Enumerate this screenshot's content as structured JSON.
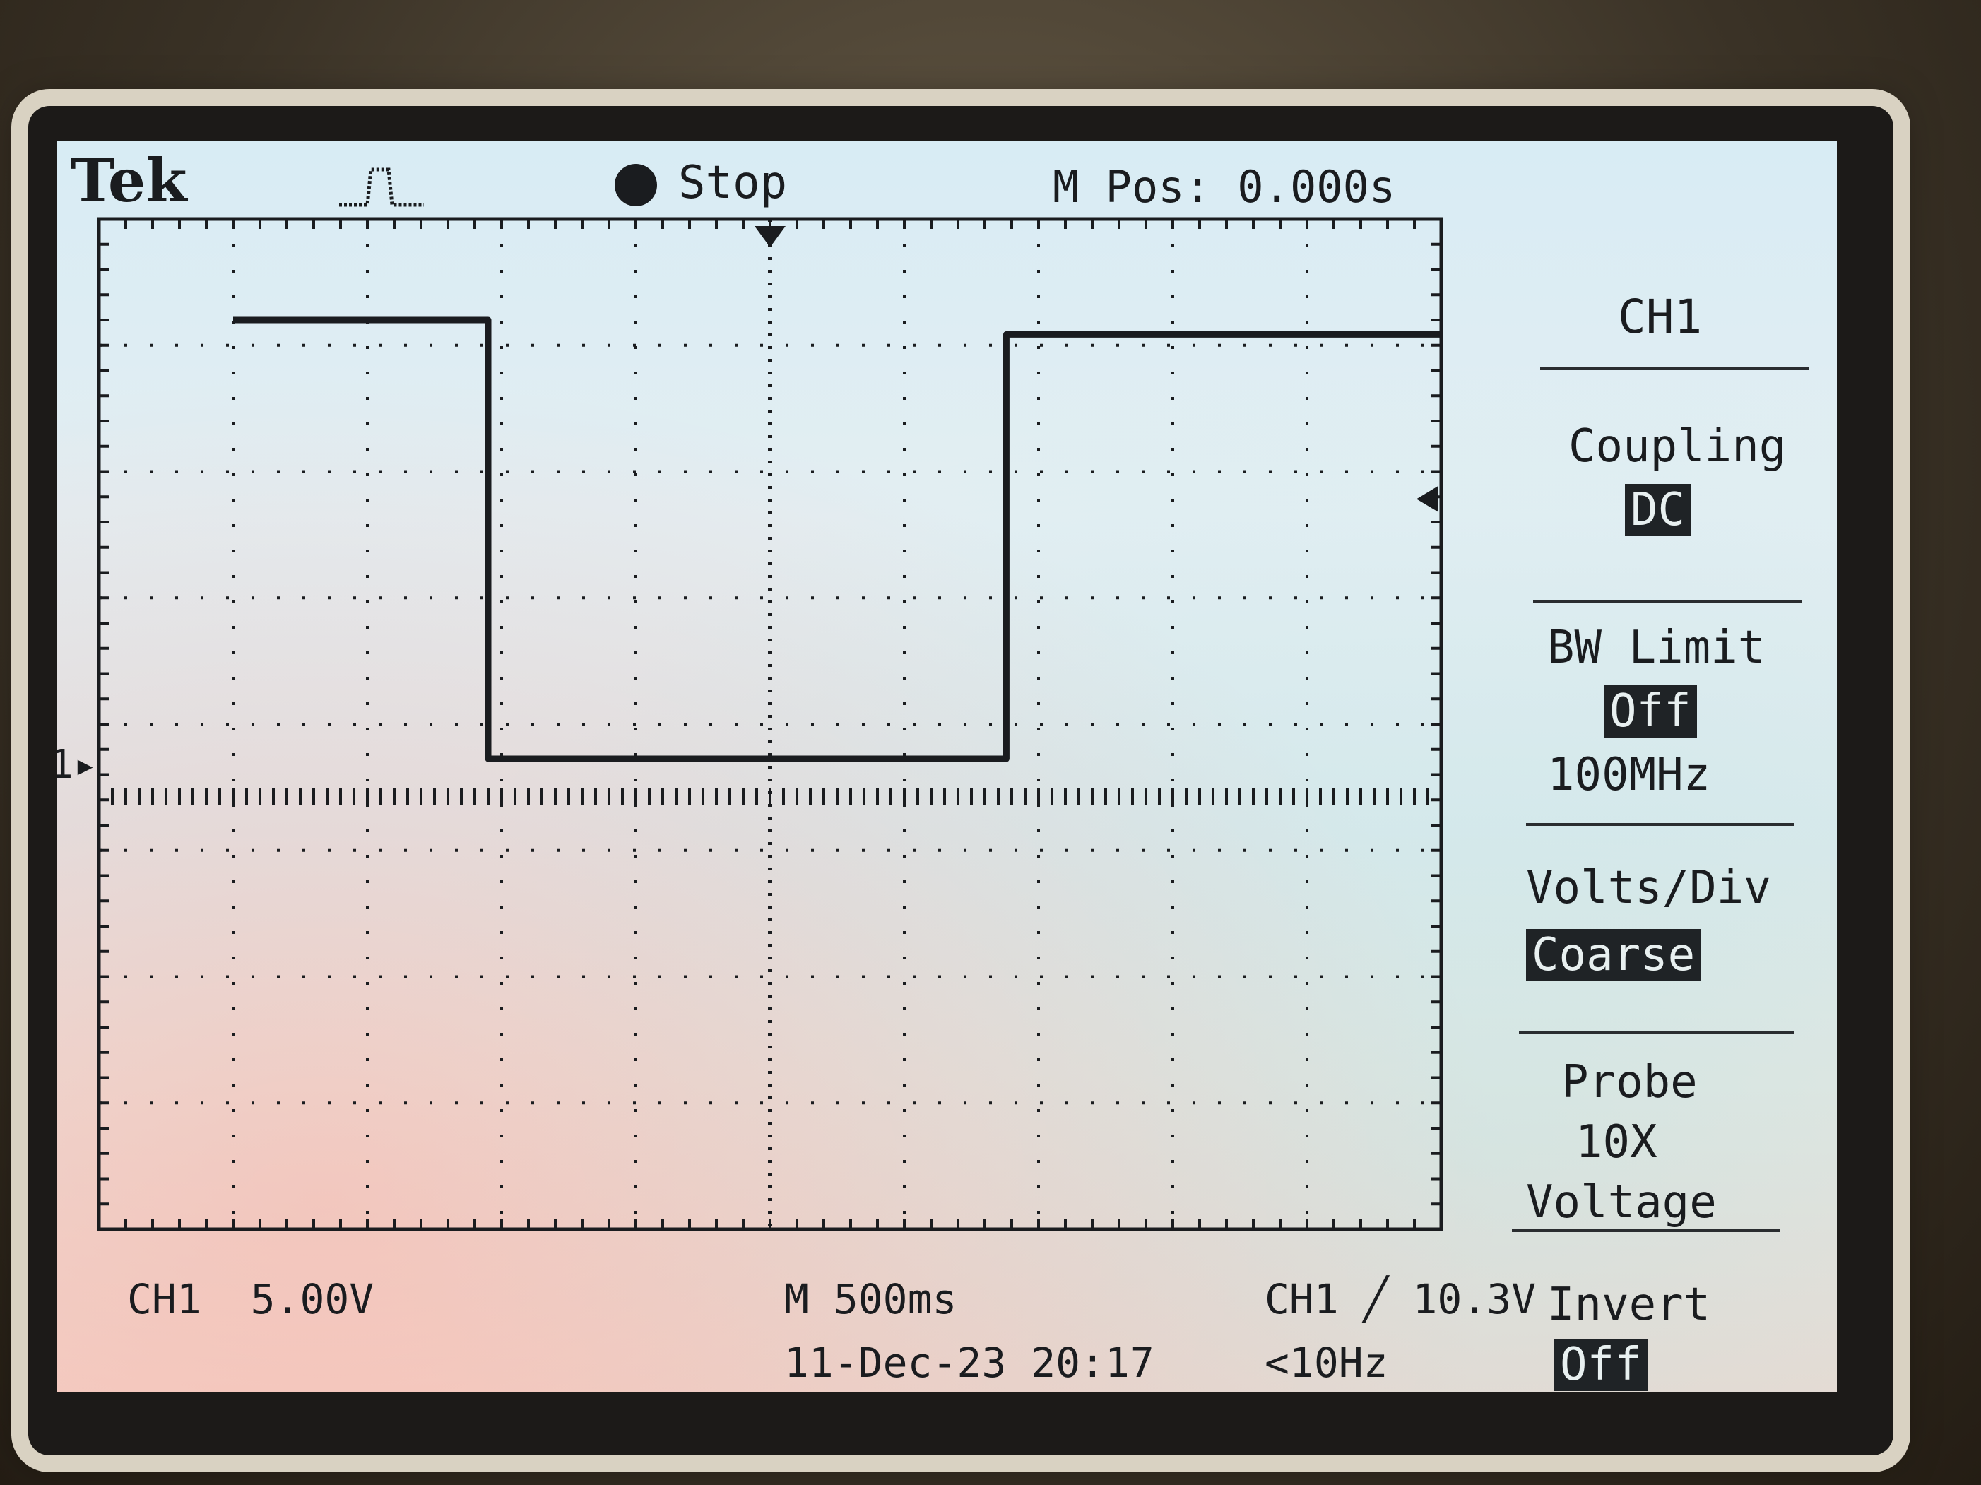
{
  "header": {
    "brand": "Tek",
    "run_state": "Stop",
    "m_pos": "M Pos: 0.000s"
  },
  "menu": {
    "title": "CH1",
    "coupling_label": "Coupling",
    "coupling_value": "DC",
    "bw_limit_label": "BW Limit",
    "bw_limit_value": "Off",
    "bw_limit_freq": "100MHz",
    "volts_div_label": "Volts/Div",
    "volts_div_value": "Coarse",
    "probe_label": "Probe",
    "probe_factor": "10X",
    "probe_type": "Voltage",
    "invert_label": "Invert",
    "invert_value": "Off"
  },
  "footer": {
    "ch1_label": "CH1",
    "ch1_scale": "5.00V",
    "timebase": "M 500ms",
    "trigger": "CH1 ╱ 10.3V",
    "datetime": "11-Dec-23 20:17",
    "frequency": "<10Hz"
  },
  "markers": {
    "ch1_ground": "1"
  },
  "colors": {
    "trace": "#1a1c1f",
    "screen_top": "#d8ecf4",
    "screen_bottom": "#f0d9cf"
  },
  "chart_data": {
    "type": "line",
    "x_unit": "s",
    "y_unit": "V",
    "x_per_div": 0.5,
    "y_per_div": 5.0,
    "xlim": [
      -2.5,
      2.5
    ],
    "ylim": [
      -15,
      20
    ],
    "grid": true,
    "series": [
      {
        "name": "CH1",
        "x": [
          -2.0,
          -1.05,
          -1.05,
          0.88,
          0.88,
          2.5
        ],
        "y": [
          16.5,
          16.5,
          1.3,
          1.3,
          16.0,
          16.0
        ]
      }
    ]
  }
}
